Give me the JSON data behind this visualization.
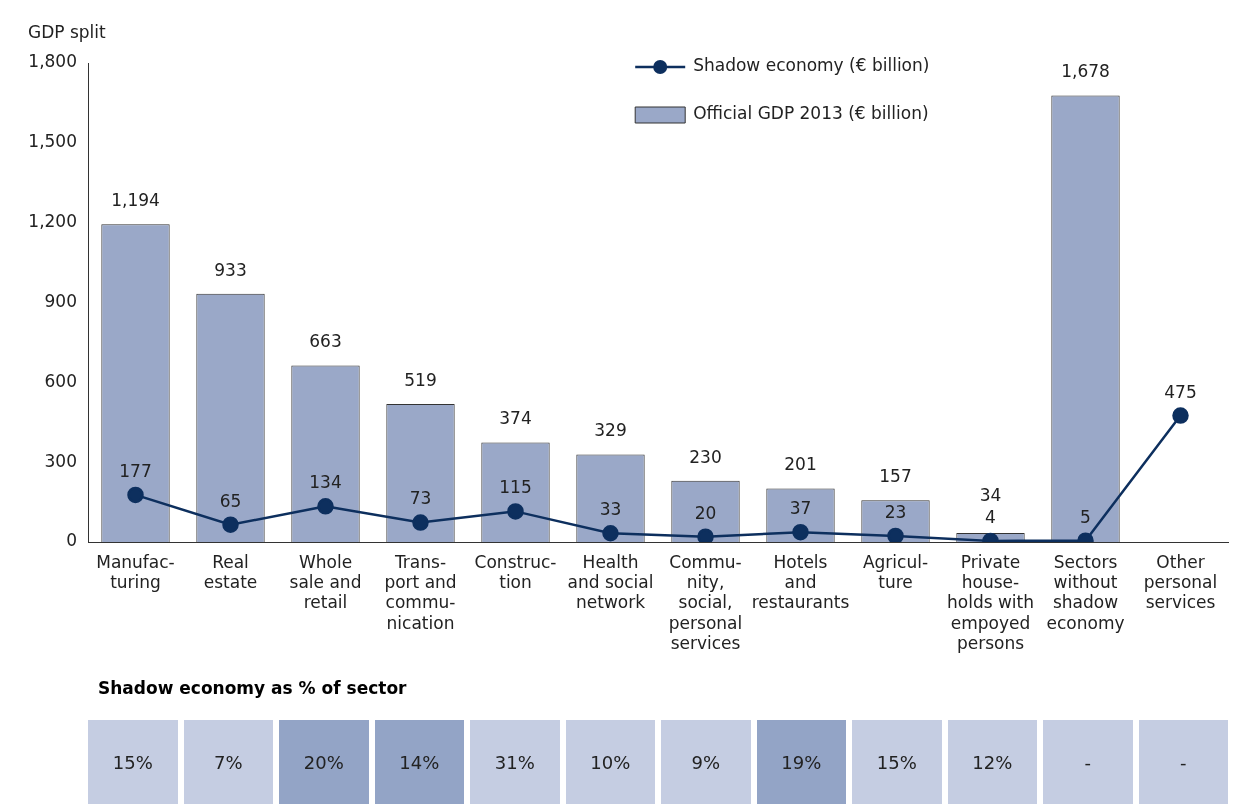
{
  "chart_data": [
    {
      "type": "bar",
      "ylabel": "GDP split",
      "categories": [
        "Manufac-\nturing",
        "Real\nestate",
        "Whole\nsale and\nretail",
        "Trans-\nport and\ncommu-\nnication",
        "Construc-\ntion",
        "Health\nand social\nnetwork",
        "Commu-\nnity,\nsocial,\npersonal\nservices",
        "Hotels\nand\nrestaurants",
        "Agricul-\nture",
        "Private\nhouse-\nholds with\nempoyed\npersons",
        "Sectors\nwithout\nshadow\neconomy",
        "Other\npersonal\nservices"
      ],
      "series": [
        {
          "name": "Shadow economy (€ billion)",
          "type": "line",
          "color": "#0d2f5e",
          "values": [
            177,
            65,
            134,
            73,
            115,
            33,
            20,
            37,
            23,
            4,
            5,
            475
          ]
        },
        {
          "name": "Official GDP 2013 (€ billion)",
          "type": "bar",
          "color": "#9aa8c8",
          "values": [
            1194,
            933,
            663,
            519,
            374,
            329,
            230,
            201,
            157,
            34,
            1678,
            null
          ],
          "value_labels": [
            "1,194",
            "933",
            "663",
            "519",
            "374",
            "329",
            "230",
            "201",
            "157",
            "34",
            "1,678",
            null
          ]
        }
      ],
      "ylim": [
        0,
        1800
      ],
      "yticks": [
        {
          "value": 0,
          "label": "0"
        },
        {
          "value": 300,
          "label": "300"
        },
        {
          "value": 600,
          "label": "600"
        },
        {
          "value": 900,
          "label": "900"
        },
        {
          "value": 1200,
          "label": "1,200"
        },
        {
          "value": 1500,
          "label": "1,500"
        },
        {
          "value": 1800,
          "label": "1,800"
        }
      ],
      "grid": false,
      "legend": "top right",
      "marker": "circle",
      "data_labels": true
    },
    {
      "type": "other",
      "title": "Shadow economy as % of sector",
      "annotations": [
        "15%",
        "7%",
        "20%",
        "14%",
        "31%",
        "10%",
        "9%",
        "19%",
        "15%",
        "12%",
        "-",
        "-"
      ],
      "colors": [
        "#c5cde2",
        "#c5cde2",
        "#93a4c6",
        "#93a4c6",
        "#c5cde2",
        "#c5cde2",
        "#c5cde2",
        "#93a4c6",
        "#c5cde2",
        "#c5cde2",
        "#c5cde2",
        "#c5cde2"
      ]
    }
  ]
}
